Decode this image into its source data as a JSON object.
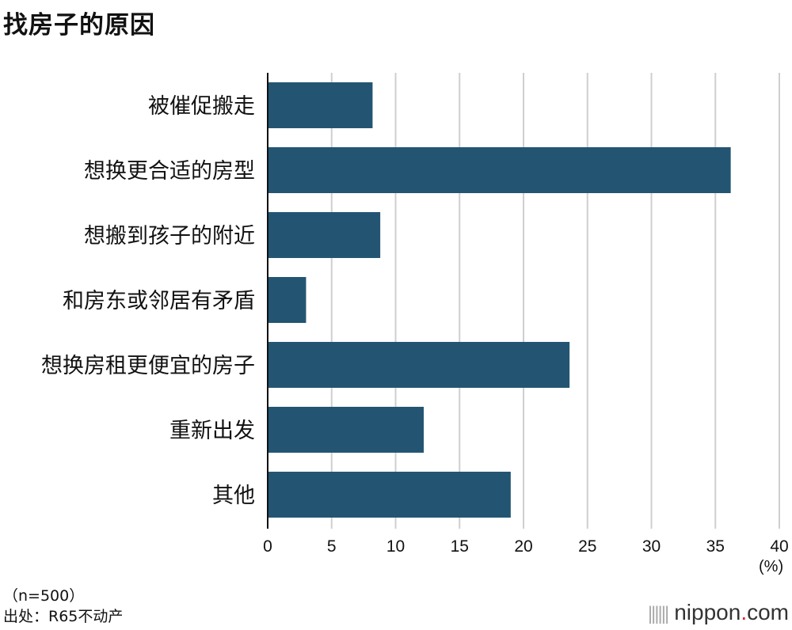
{
  "chart_data": {
    "type": "bar",
    "orientation": "horizontal",
    "title": "找房子的原因",
    "categories": [
      "被催促搬走",
      "想换更合适的房型",
      "想搬到孩子的附近",
      "和房东或邻居有矛盾",
      "想换房租更便宜的房子",
      "重新出发",
      "其他"
    ],
    "values": [
      8.2,
      36.2,
      8.8,
      3.0,
      23.6,
      12.2,
      19.0
    ],
    "xlim": [
      0,
      40
    ],
    "xticks": [
      "0",
      "5",
      "10",
      "15",
      "20",
      "25",
      "30",
      "35",
      "40"
    ],
    "xlabel": "(%)",
    "grid": true,
    "bar_color": "#235573"
  },
  "note": "（n=500）",
  "source": "出处：R65不动产",
  "logo": {
    "name": "nippon",
    "dot": ".",
    "suffix": "com"
  }
}
